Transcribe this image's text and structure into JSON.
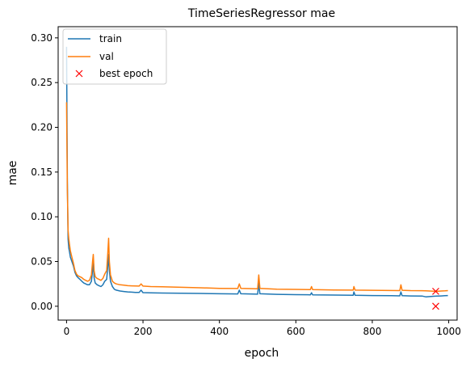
{
  "chart_data": {
    "type": "line",
    "title": "TimeSeriesRegressor mae",
    "xlabel": "epoch",
    "ylabel": "mae",
    "xlim": [
      -22,
      1022
    ],
    "ylim": [
      -0.0155,
      0.3125
    ],
    "xticks": [
      0,
      200,
      400,
      600,
      800,
      1000
    ],
    "yticks": [
      0.0,
      0.05,
      0.1,
      0.15,
      0.2,
      0.25,
      0.3
    ],
    "grid": false,
    "legend_position": "top-left",
    "colors": {
      "train": "#1f77b4",
      "val": "#ff7f0e",
      "best": "#ff0000"
    },
    "series": [
      {
        "name": "train",
        "x": [
          0,
          2,
          4,
          6,
          8,
          10,
          14,
          18,
          22,
          26,
          30,
          35,
          40,
          45,
          50,
          55,
          60,
          65,
          68,
          70,
          72,
          75,
          80,
          85,
          90,
          95,
          100,
          105,
          108,
          110,
          112,
          115,
          120,
          125,
          130,
          140,
          150,
          160,
          170,
          180,
          190,
          195,
          200,
          220,
          250,
          300,
          350,
          400,
          448,
          452,
          456,
          500,
          503,
          506,
          550,
          600,
          638,
          641,
          644,
          700,
          750,
          752,
          755,
          800,
          850,
          872,
          875,
          878,
          900,
          930,
          940,
          960,
          970,
          980,
          990,
          998
        ],
        "y": [
          0.29,
          0.14,
          0.075,
          0.065,
          0.06,
          0.055,
          0.05,
          0.045,
          0.038,
          0.034,
          0.032,
          0.03,
          0.028,
          0.026,
          0.025,
          0.024,
          0.024,
          0.028,
          0.04,
          0.048,
          0.032,
          0.026,
          0.024,
          0.023,
          0.022,
          0.024,
          0.028,
          0.03,
          0.045,
          0.058,
          0.04,
          0.028,
          0.022,
          0.019,
          0.018,
          0.017,
          0.0165,
          0.016,
          0.0158,
          0.0155,
          0.0154,
          0.018,
          0.0152,
          0.015,
          0.0148,
          0.0145,
          0.0143,
          0.014,
          0.0138,
          0.018,
          0.014,
          0.0135,
          0.026,
          0.014,
          0.0133,
          0.013,
          0.0128,
          0.015,
          0.0128,
          0.0125,
          0.0122,
          0.016,
          0.0122,
          0.012,
          0.0118,
          0.0116,
          0.016,
          0.0118,
          0.0115,
          0.0114,
          0.0105,
          0.0112,
          0.0113,
          0.0115,
          0.0118,
          0.012
        ]
      },
      {
        "name": "val",
        "x": [
          0,
          2,
          4,
          6,
          8,
          10,
          14,
          18,
          22,
          26,
          30,
          35,
          40,
          45,
          50,
          55,
          60,
          65,
          68,
          70,
          72,
          75,
          80,
          85,
          90,
          95,
          100,
          105,
          108,
          110,
          112,
          115,
          120,
          125,
          130,
          140,
          150,
          160,
          170,
          180,
          190,
          195,
          200,
          220,
          250,
          300,
          350,
          400,
          448,
          452,
          456,
          500,
          503,
          506,
          550,
          600,
          638,
          641,
          644,
          700,
          750,
          752,
          755,
          800,
          850,
          872,
          875,
          878,
          900,
          930,
          940,
          960,
          970,
          980,
          990,
          998
        ],
        "y": [
          0.228,
          0.13,
          0.085,
          0.075,
          0.068,
          0.062,
          0.055,
          0.048,
          0.04,
          0.036,
          0.034,
          0.033,
          0.032,
          0.03,
          0.029,
          0.028,
          0.029,
          0.035,
          0.05,
          0.058,
          0.04,
          0.033,
          0.031,
          0.03,
          0.029,
          0.031,
          0.036,
          0.04,
          0.06,
          0.076,
          0.05,
          0.035,
          0.028,
          0.026,
          0.025,
          0.024,
          0.0235,
          0.023,
          0.0228,
          0.0226,
          0.0225,
          0.025,
          0.0225,
          0.022,
          0.0218,
          0.0212,
          0.0206,
          0.02,
          0.0198,
          0.025,
          0.02,
          0.0195,
          0.035,
          0.02,
          0.019,
          0.0188,
          0.0186,
          0.022,
          0.0186,
          0.0182,
          0.018,
          0.022,
          0.018,
          0.0178,
          0.0176,
          0.0175,
          0.024,
          0.0178,
          0.0175,
          0.0174,
          0.0172,
          0.0168,
          0.0167,
          0.017,
          0.0172,
          0.0175
        ]
      }
    ],
    "markers": {
      "name": "best epoch",
      "x": [
        966,
        966
      ],
      "y": [
        0.0,
        0.0167
      ]
    }
  }
}
